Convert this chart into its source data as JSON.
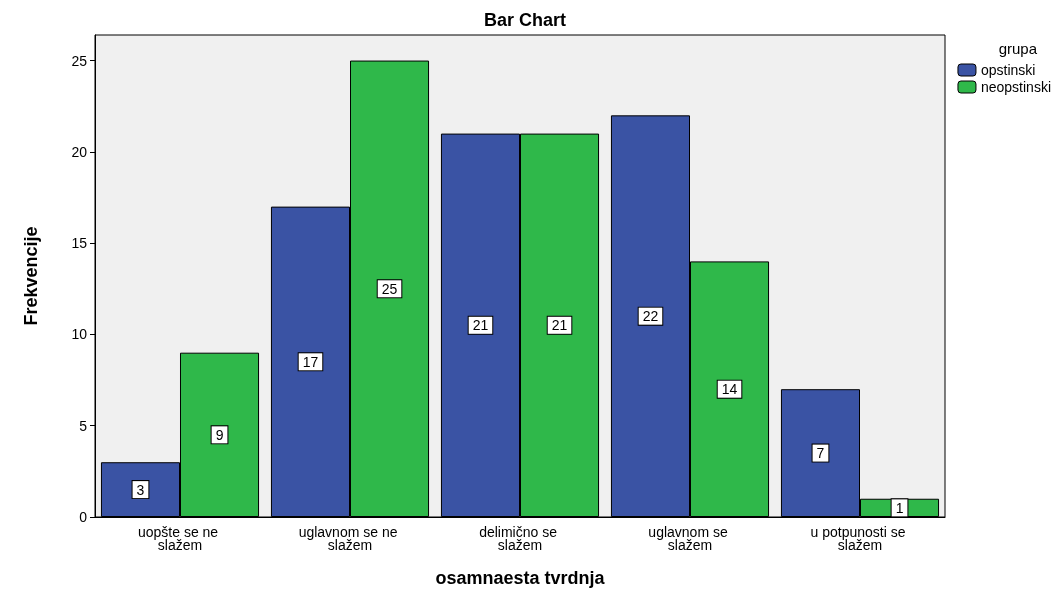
{
  "chart_data": {
    "type": "bar",
    "title": "Bar Chart",
    "xlabel": "osamnaesta tvrdnja",
    "ylabel": "Frekvencije",
    "legend_title": "grupa",
    "categories": [
      "uopšte se ne slažem",
      "uglavnom se ne slažem",
      "delimično se slažem",
      "uglavnom se slažem",
      "u potpunosti se slažem"
    ],
    "series": [
      {
        "name": "opstinski",
        "color": "#3a53a4",
        "values": [
          3,
          17,
          21,
          22,
          7
        ]
      },
      {
        "name": "neopstinski",
        "color": "#2fb84a",
        "values": [
          9,
          25,
          21,
          14,
          1
        ]
      }
    ],
    "ylim": [
      0,
      26.4
    ],
    "yticks": [
      0,
      5,
      10,
      15,
      20,
      25
    ],
    "grid": false,
    "legend": "top right",
    "data_labels": true
  }
}
